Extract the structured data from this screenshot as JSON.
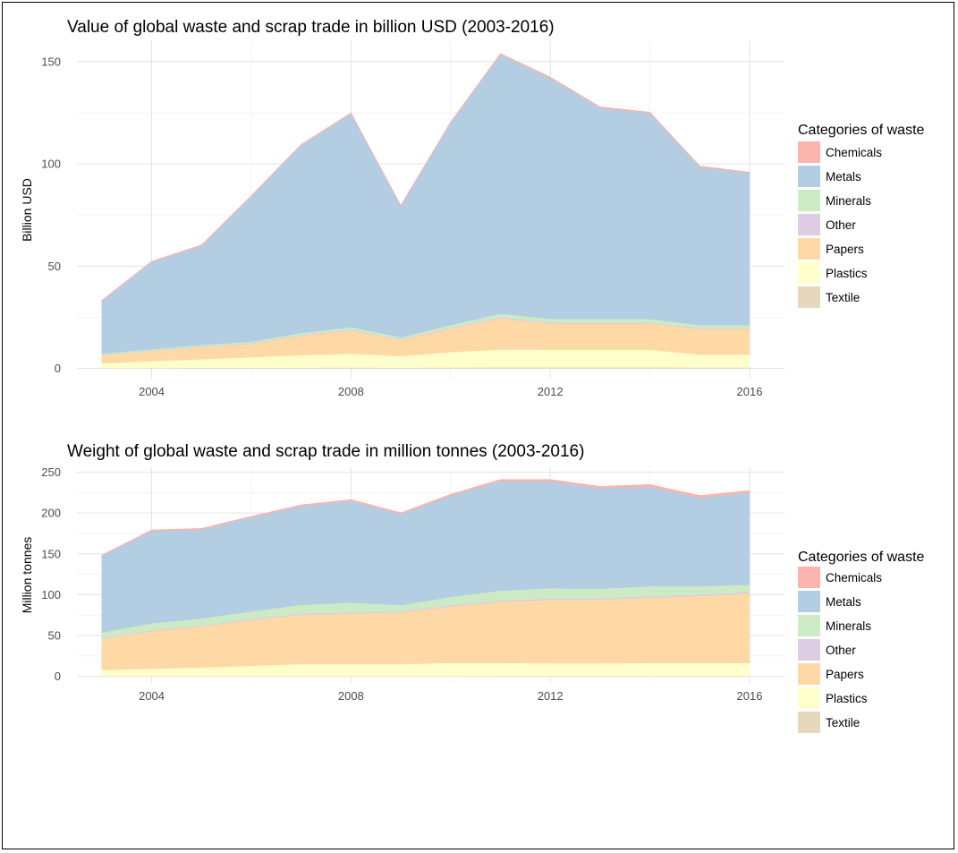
{
  "chart_data": [
    {
      "type": "area",
      "stacked": true,
      "title": "Value of global waste and scrap trade in billion USD (2003-2016)",
      "xlabel": "",
      "ylabel": "Billion USD",
      "x": [
        2003,
        2004,
        2005,
        2006,
        2007,
        2008,
        2009,
        2010,
        2011,
        2012,
        2013,
        2014,
        2015,
        2016
      ],
      "x_ticks": [
        2004,
        2008,
        2012,
        2016
      ],
      "x_tick_labels": [
        "2004",
        "2008",
        "2012",
        "2016"
      ],
      "xlim": [
        2002.5,
        2016.7
      ],
      "y_ticks": [
        0,
        50,
        100,
        150
      ],
      "y_tick_labels": [
        "0",
        "50",
        "100",
        "150"
      ],
      "ylim": [
        -5,
        160
      ],
      "grid": true,
      "legend_title": "Categories of waste",
      "legend_position": "right",
      "series": [
        {
          "name": "Textile",
          "color": "#E5D8BD",
          "values": [
            0.3,
            0.3,
            0.4,
            0.4,
            0.4,
            0.5,
            0.4,
            0.5,
            0.6,
            0.6,
            0.6,
            0.6,
            0.5,
            0.5
          ]
        },
        {
          "name": "Plastics",
          "color": "#FFFFCC",
          "values": [
            2.2,
            3.3,
            4.1,
            5.1,
            6.1,
            6.7,
            5.6,
            7.5,
            8.7,
            8.6,
            8.6,
            8.6,
            6.3,
            6.3
          ]
        },
        {
          "name": "Papers",
          "color": "#FED9A6",
          "values": [
            4.0,
            5.0,
            6.0,
            6.5,
            9.5,
            11.3,
            8.0,
            11.5,
            15.2,
            12.8,
            12.8,
            12.8,
            12.5,
            12.5
          ]
        },
        {
          "name": "Other",
          "color": "#DECBE4",
          "values": [
            0.2,
            0.2,
            0.3,
            0.3,
            0.3,
            0.4,
            0.3,
            0.4,
            0.5,
            0.4,
            0.4,
            0.4,
            0.4,
            0.4
          ]
        },
        {
          "name": "Minerals",
          "color": "#CCEBC5",
          "values": [
            0.5,
            0.6,
            0.7,
            0.8,
            1.0,
            1.3,
            0.9,
            1.3,
            1.8,
            1.8,
            1.8,
            1.8,
            1.5,
            1.5
          ]
        },
        {
          "name": "Metals",
          "color": "#B3CDE3",
          "values": [
            25.8,
            42.6,
            48.5,
            71.0,
            91.8,
            104.4,
            64.3,
            98.9,
            126.7,
            117.8,
            103.2,
            100.6,
            77.4,
            74.4
          ]
        },
        {
          "name": "Chemicals",
          "color": "#FBB4AE",
          "values": [
            0.3,
            0.4,
            0.4,
            0.4,
            0.4,
            0.4,
            0.3,
            0.4,
            0.5,
            0.5,
            0.5,
            0.5,
            0.4,
            0.4
          ]
        }
      ]
    },
    {
      "type": "area",
      "stacked": true,
      "title": "Weight of global waste and scrap trade in million tonnes (2003-2016)",
      "xlabel": "",
      "ylabel": "Million tonnes",
      "x": [
        2003,
        2004,
        2005,
        2006,
        2007,
        2008,
        2009,
        2010,
        2011,
        2012,
        2013,
        2014,
        2015,
        2016
      ],
      "x_ticks": [
        2004,
        2008,
        2012,
        2016
      ],
      "x_tick_labels": [
        "2004",
        "2008",
        "2012",
        "2016"
      ],
      "xlim": [
        2002.5,
        2016.7
      ],
      "y_ticks": [
        0,
        50,
        100,
        150,
        200,
        250
      ],
      "y_tick_labels": [
        "0",
        "50",
        "100",
        "150",
        "200",
        "250"
      ],
      "ylim": [
        -8,
        256
      ],
      "grid": true,
      "legend_title": "Categories of waste",
      "legend_position": "right",
      "series": [
        {
          "name": "Textile",
          "color": "#E5D8BD",
          "values": [
            0.5,
            0.5,
            0.5,
            0.5,
            0.6,
            0.6,
            0.6,
            0.6,
            0.7,
            0.7,
            0.7,
            0.7,
            0.7,
            0.7
          ]
        },
        {
          "name": "Plastics",
          "color": "#FFFFCC",
          "values": [
            7.5,
            9.0,
            10.5,
            12.5,
            14.4,
            14.4,
            14.4,
            15.9,
            15.8,
            15.3,
            15.3,
            15.8,
            15.8,
            15.8
          ]
        },
        {
          "name": "Papers",
          "color": "#FED9A6",
          "values": [
            38.0,
            46.0,
            50.0,
            56.0,
            60.5,
            62.0,
            63.0,
            69.0,
            75.0,
            78.0,
            78.0,
            80.0,
            82.0,
            85.0
          ]
        },
        {
          "name": "Other",
          "color": "#DECBE4",
          "values": [
            0.8,
            1.0,
            1.0,
            1.2,
            1.2,
            1.3,
            1.3,
            1.4,
            1.5,
            1.5,
            1.5,
            1.8,
            1.8,
            1.8
          ]
        },
        {
          "name": "Minerals",
          "color": "#CCEBC5",
          "values": [
            7.0,
            8.5,
            9.0,
            9.5,
            11.0,
            12.0,
            8.0,
            10.5,
            12.0,
            12.5,
            12.0,
            12.0,
            10.0,
            9.0
          ]
        },
        {
          "name": "Metals",
          "color": "#B3CDE3",
          "values": [
            93.7,
            113.0,
            109.0,
            115.0,
            120.8,
            124.7,
            111.7,
            124.0,
            134.0,
            131.0,
            123.0,
            122.0,
            108.7,
            112.7
          ]
        },
        {
          "name": "Chemicals",
          "color": "#FBB4AE",
          "values": [
            1.0,
            1.2,
            1.2,
            1.3,
            1.5,
            1.5,
            1.3,
            1.6,
            2.0,
            2.0,
            2.0,
            2.5,
            2.5,
            2.5
          ]
        }
      ]
    }
  ]
}
